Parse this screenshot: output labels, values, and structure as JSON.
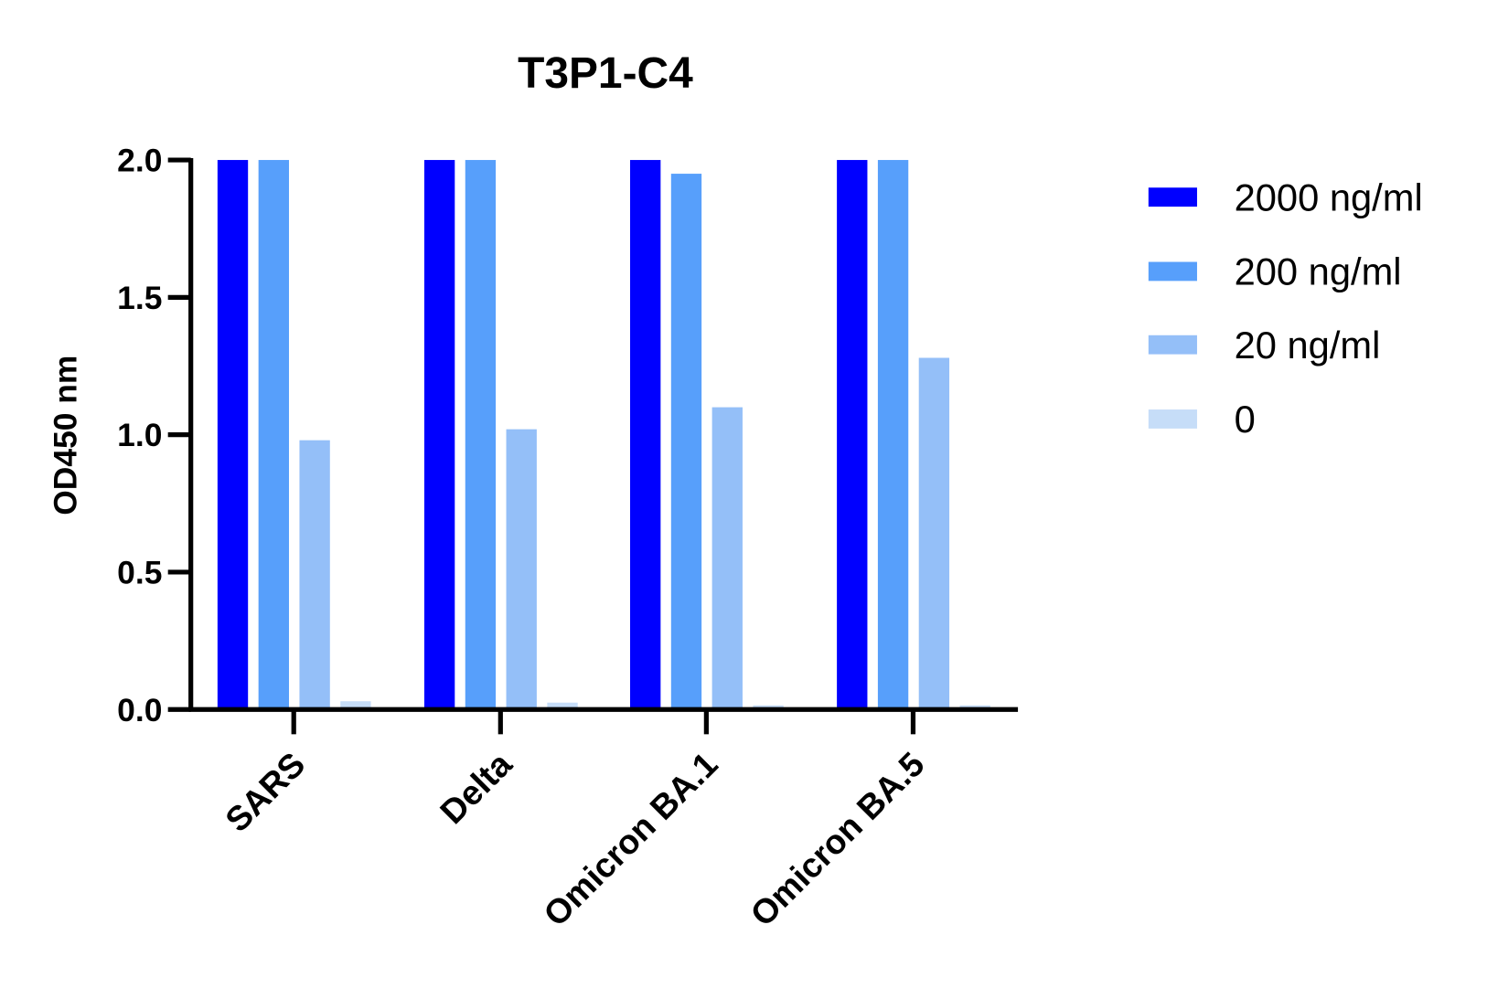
{
  "chart_data": {
    "type": "bar",
    "title": "T3P1-C4",
    "xlabel": "",
    "ylabel": "OD450 nm",
    "ylim": [
      0,
      2.0
    ],
    "yticks": [
      "0.0",
      "0.5",
      "1.0",
      "1.5",
      "2.0"
    ],
    "categories": [
      "SARS",
      "Delta",
      "Omicron BA.1",
      "Omicron BA.5"
    ],
    "series": [
      {
        "name": "2000 ng/ml",
        "color": "#0000FF",
        "values": [
          2.0,
          2.0,
          2.0,
          2.0
        ]
      },
      {
        "name": "200 ng/ml",
        "color": "#579FFB",
        "values": [
          2.0,
          2.0,
          1.95,
          2.0
        ]
      },
      {
        "name": "20 ng/ml",
        "color": "#94BFF8",
        "values": [
          0.98,
          1.02,
          1.1,
          1.28
        ]
      },
      {
        "name": "0",
        "color": "#C6DDF8",
        "values": [
          0.03,
          0.025,
          0.015,
          0.015
        ]
      }
    ],
    "grid": false,
    "legend_position": "right"
  }
}
